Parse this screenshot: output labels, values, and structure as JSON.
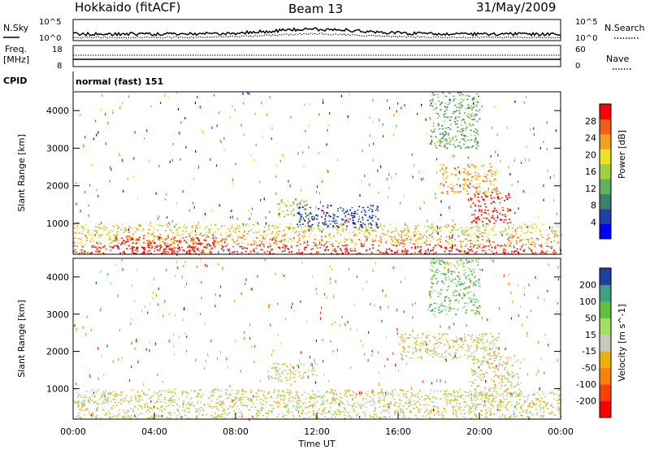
{
  "header": {
    "station": "Hokkaido (fitACF)",
    "beam": "Beam 13",
    "date": "31/May/2009"
  },
  "noise_panel": {
    "left_label": "N.Sky",
    "right_label": "N.Search",
    "left_ticks": [
      "10^5",
      "10^0"
    ],
    "right_ticks": [
      "10^5",
      "10^0"
    ]
  },
  "freq_panel": {
    "left_label_1": "Freq.",
    "left_label_2": "[MHz]",
    "right_label": "Nave",
    "left_ticks": [
      "18",
      "8"
    ],
    "right_ticks": [
      "60",
      "0"
    ]
  },
  "cpid_panel": {
    "label": "CPID",
    "text": "normal (fast) 151"
  },
  "axes": {
    "ylabel": "Slant Range [km]",
    "xlabel": "Time UT",
    "xticks": [
      "00:00",
      "04:00",
      "08:00",
      "12:00",
      "16:00",
      "20:00",
      "00:00"
    ],
    "yticks": [
      "1000",
      "2000",
      "3000",
      "4000"
    ],
    "yrange_km": [
      180,
      4500
    ],
    "xrange_hours": [
      0,
      24
    ]
  },
  "chart_data": [
    {
      "type": "heatmap",
      "quantity": "Power",
      "colorbar_label": "Power [dB]",
      "colorbar_ticks": [
        "28",
        "24",
        "20",
        "16",
        "12",
        "8",
        "4"
      ],
      "colors": [
        "#0000ff",
        "#2040a8",
        "#3c8070",
        "#60b060",
        "#a0d040",
        "#f0e020",
        "#f0a020",
        "#f06010",
        "#ff0000"
      ],
      "regions": [
        {
          "t": [
            0,
            24
          ],
          "r": [
            200,
            450
          ],
          "level": 8
        },
        {
          "t": [
            0,
            24
          ],
          "r": [
            450,
            700
          ],
          "level": 6
        },
        {
          "t": [
            0,
            24
          ],
          "r": [
            700,
            1000
          ],
          "level": 5
        },
        {
          "t": [
            2,
            7
          ],
          "r": [
            200,
            650
          ],
          "level": 8
        },
        {
          "t": [
            10,
            11.5
          ],
          "r": [
            1200,
            1700
          ],
          "level": 4
        },
        {
          "t": [
            11,
            15
          ],
          "r": [
            900,
            1500
          ],
          "level": 1
        },
        {
          "t": [
            18,
            21
          ],
          "r": [
            1800,
            2600
          ],
          "level": 6
        },
        {
          "t": [
            19.5,
            21.5
          ],
          "r": [
            1000,
            1900
          ],
          "level": 8
        },
        {
          "t": [
            17.5,
            20
          ],
          "r": [
            3000,
            4500
          ],
          "level": 3
        }
      ]
    },
    {
      "type": "heatmap",
      "quantity": "Velocity",
      "colorbar_label": "Velocity [m s^-1]",
      "colorbar_ticks": [
        "200",
        "100",
        "50",
        "15",
        "-15",
        "-50",
        "-100",
        "-200"
      ],
      "colors": [
        "#ff0000",
        "#ff4000",
        "#ff8000",
        "#f0b000",
        "#c8c8c0",
        "#a0e060",
        "#60c040",
        "#40a080",
        "#2040a0"
      ],
      "regions": [
        {
          "t": [
            0,
            24
          ],
          "r": [
            200,
            1000
          ],
          "level": 4
        },
        {
          "t": [
            9.5,
            12
          ],
          "r": [
            1200,
            1700
          ],
          "level": 4
        },
        {
          "t": [
            16,
            21
          ],
          "r": [
            1800,
            2500
          ],
          "level": 4
        },
        {
          "t": [
            19.5,
            22
          ],
          "r": [
            800,
            1900
          ],
          "level": 4
        },
        {
          "t": [
            17.5,
            20
          ],
          "r": [
            3000,
            4500
          ],
          "level": 6
        }
      ]
    }
  ]
}
